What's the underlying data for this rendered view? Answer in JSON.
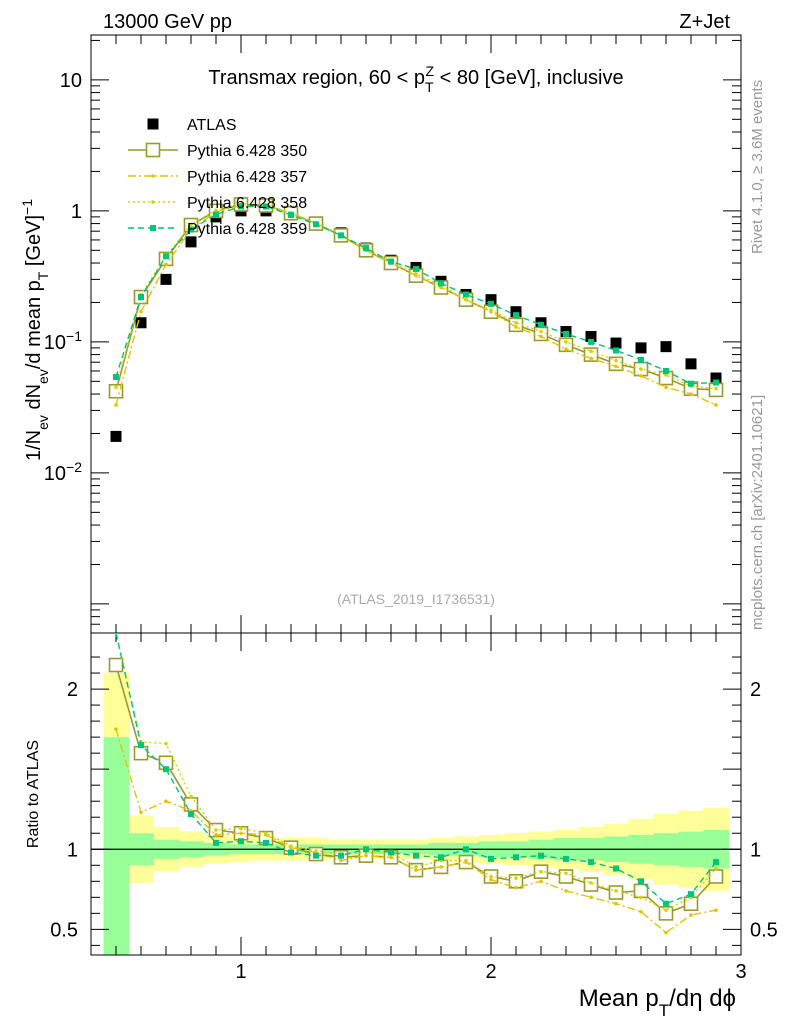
{
  "header": {
    "energy_label": "13000 GeV pp",
    "process_label": "Z+Jet",
    "analysis_id": "(ATLAS_2019_I1736531)"
  },
  "side_labels": {
    "rivet": "Rivet 4.1.0, ≥ 3.6M events",
    "source": "mcplots.cern.ch [arXiv:2401.10621]"
  },
  "colors": {
    "atlas": "#000000",
    "p350": "#9a9a30",
    "p357": "#e6c300",
    "p358": "#d4d400",
    "p359": "#00c47a",
    "band_outer": "#ffff99",
    "band_inner": "#99ff99"
  },
  "chart_data": [
    {
      "type": "scatter",
      "panel": "main",
      "title": "Transmax region, 60 < p_T^Z < 80 [GeV], inclusive",
      "xlabel": "Mean p_T/dη dϕ",
      "ylabel": "1/N_ev dN_ev/d mean p_T [GeV]^-1",
      "yscale": "log",
      "xlim": [
        0.4,
        3.0
      ],
      "ylim": [
        0.0006,
        22
      ],
      "yticks": [
        0.01,
        0.1,
        1,
        10
      ],
      "ytick_labels": [
        "10^-2",
        "10^-1",
        "1",
        "10"
      ],
      "legend": [
        "ATLAS",
        "Pythia 6.428 350",
        "Pythia 6.428 357",
        "Pythia 6.428 358",
        "Pythia 6.428 359"
      ],
      "x": [
        0.5,
        0.6,
        0.7,
        0.8,
        0.9,
        1.0,
        1.1,
        1.2,
        1.3,
        1.4,
        1.5,
        1.6,
        1.7,
        1.8,
        1.9,
        2.0,
        2.1,
        2.2,
        2.3,
        2.4,
        2.5,
        2.6,
        2.7,
        2.8,
        2.9
      ],
      "series": [
        {
          "name": "ATLAS",
          "values": [
            0.019,
            0.14,
            0.3,
            0.58,
            0.9,
            1.0,
            1.0,
            0.95,
            0.82,
            0.68,
            0.52,
            0.42,
            0.37,
            0.29,
            0.23,
            0.21,
            0.17,
            0.14,
            0.12,
            0.11,
            0.098,
            0.09,
            0.092,
            0.068,
            0.053
          ]
        },
        {
          "name": "Pythia 6.428 350",
          "values": [
            0.042,
            0.22,
            0.43,
            0.78,
            1.0,
            1.12,
            1.1,
            0.96,
            0.8,
            0.65,
            0.5,
            0.4,
            0.32,
            0.26,
            0.21,
            0.17,
            0.135,
            0.115,
            0.095,
            0.08,
            0.068,
            0.062,
            0.053,
            0.044,
            0.043
          ]
        },
        {
          "name": "Pythia 6.428 357",
          "values": [
            0.033,
            0.17,
            0.39,
            0.72,
            0.98,
            1.1,
            1.09,
            0.96,
            0.8,
            0.64,
            0.5,
            0.4,
            0.32,
            0.26,
            0.21,
            0.17,
            0.13,
            0.11,
            0.088,
            0.075,
            0.065,
            0.055,
            0.045,
            0.04,
            0.033
          ]
        },
        {
          "name": "Pythia 6.428 358",
          "values": [
            0.045,
            0.23,
            0.45,
            0.79,
            1.01,
            1.13,
            1.11,
            0.97,
            0.81,
            0.66,
            0.51,
            0.41,
            0.33,
            0.27,
            0.21,
            0.175,
            0.14,
            0.12,
            0.1,
            0.085,
            0.072,
            0.062,
            0.056,
            0.046,
            0.044
          ]
        },
        {
          "name": "Pythia 6.428 359",
          "values": [
            0.054,
            0.22,
            0.45,
            0.72,
            0.94,
            1.08,
            1.08,
            0.93,
            0.79,
            0.65,
            0.52,
            0.41,
            0.36,
            0.28,
            0.23,
            0.195,
            0.16,
            0.135,
            0.115,
            0.1,
            0.086,
            0.073,
            0.06,
            0.048,
            0.049
          ]
        }
      ]
    },
    {
      "type": "line",
      "panel": "ratio",
      "ylabel": "Ratio to ATLAS",
      "xlabel": "Mean p_T/dη dϕ",
      "xlim": [
        0.4,
        3.0
      ],
      "ylim": [
        0.34,
        2.35
      ],
      "xticks": [
        1,
        2,
        3
      ],
      "yticks": [
        0.5,
        1,
        2
      ],
      "reference_line": 1,
      "x": [
        0.5,
        0.6,
        0.7,
        0.8,
        0.9,
        1.0,
        1.1,
        1.2,
        1.3,
        1.4,
        1.5,
        1.6,
        1.7,
        1.8,
        1.9,
        2.0,
        2.1,
        2.2,
        2.3,
        2.4,
        2.5,
        2.6,
        2.7,
        2.8,
        2.9
      ],
      "bin_edges": [
        0.45,
        0.55,
        0.65,
        0.75,
        0.85,
        0.95,
        1.05,
        1.15,
        1.25,
        1.35,
        1.45,
        1.55,
        1.65,
        1.75,
        1.85,
        1.95,
        2.05,
        2.15,
        2.25,
        2.35,
        2.45,
        2.55,
        2.65,
        2.75,
        2.85,
        2.95
      ],
      "band_outer": {
        "low": [
          0.34,
          0.79,
          0.86,
          0.89,
          0.91,
          0.92,
          0.93,
          0.93,
          0.93,
          0.94,
          0.94,
          0.94,
          0.94,
          0.93,
          0.92,
          0.91,
          0.9,
          0.89,
          0.88,
          0.86,
          0.84,
          0.81,
          0.78,
          0.76,
          0.74
        ],
        "high": [
          2.1,
          1.21,
          1.14,
          1.11,
          1.09,
          1.08,
          1.07,
          1.07,
          1.07,
          1.06,
          1.06,
          1.06,
          1.06,
          1.07,
          1.08,
          1.09,
          1.1,
          1.11,
          1.12,
          1.14,
          1.16,
          1.19,
          1.22,
          1.24,
          1.26
        ]
      },
      "band_inner": {
        "low": [
          0.34,
          0.9,
          0.94,
          0.95,
          0.96,
          0.97,
          0.97,
          0.97,
          0.97,
          0.97,
          0.97,
          0.97,
          0.97,
          0.96,
          0.96,
          0.95,
          0.95,
          0.94,
          0.93,
          0.93,
          0.92,
          0.91,
          0.9,
          0.89,
          0.88
        ],
        "high": [
          1.7,
          1.1,
          1.06,
          1.05,
          1.04,
          1.03,
          1.03,
          1.03,
          1.03,
          1.03,
          1.03,
          1.03,
          1.03,
          1.04,
          1.04,
          1.05,
          1.05,
          1.06,
          1.07,
          1.07,
          1.08,
          1.09,
          1.1,
          1.11,
          1.12
        ]
      },
      "series": [
        {
          "name": "Pythia 6.428 350",
          "values": [
            2.15,
            1.6,
            1.54,
            1.28,
            1.12,
            1.1,
            1.07,
            1.01,
            0.97,
            0.95,
            0.96,
            0.95,
            0.87,
            0.89,
            0.92,
            0.83,
            0.8,
            0.86,
            0.83,
            0.78,
            0.73,
            0.74,
            0.6,
            0.66,
            0.83
          ]
        },
        {
          "name": "Pythia 6.428 357",
          "values": [
            1.75,
            1.23,
            1.3,
            1.24,
            1.09,
            1.1,
            1.09,
            1.01,
            0.98,
            0.93,
            0.96,
            0.95,
            0.87,
            0.89,
            0.92,
            0.81,
            0.76,
            0.8,
            0.74,
            0.7,
            0.66,
            0.61,
            0.48,
            0.59,
            0.62
          ]
        },
        {
          "name": "Pythia 6.428 358",
          "values": [
            2.37,
            1.67,
            1.66,
            1.33,
            1.12,
            1.13,
            1.1,
            1.02,
            0.99,
            0.97,
            0.98,
            0.98,
            0.89,
            0.93,
            0.93,
            0.83,
            0.82,
            0.86,
            0.85,
            0.79,
            0.74,
            0.7,
            0.62,
            0.7,
            0.88
          ]
        },
        {
          "name": "Pythia 6.428 359",
          "values": [
            2.4,
            1.65,
            1.5,
            1.22,
            1.04,
            1.05,
            1.04,
            0.98,
            0.96,
            0.96,
            1.0,
            0.98,
            0.96,
            0.95,
            1.0,
            0.94,
            0.95,
            0.96,
            0.94,
            0.92,
            0.88,
            0.8,
            0.66,
            0.72,
            0.92
          ]
        }
      ]
    }
  ]
}
